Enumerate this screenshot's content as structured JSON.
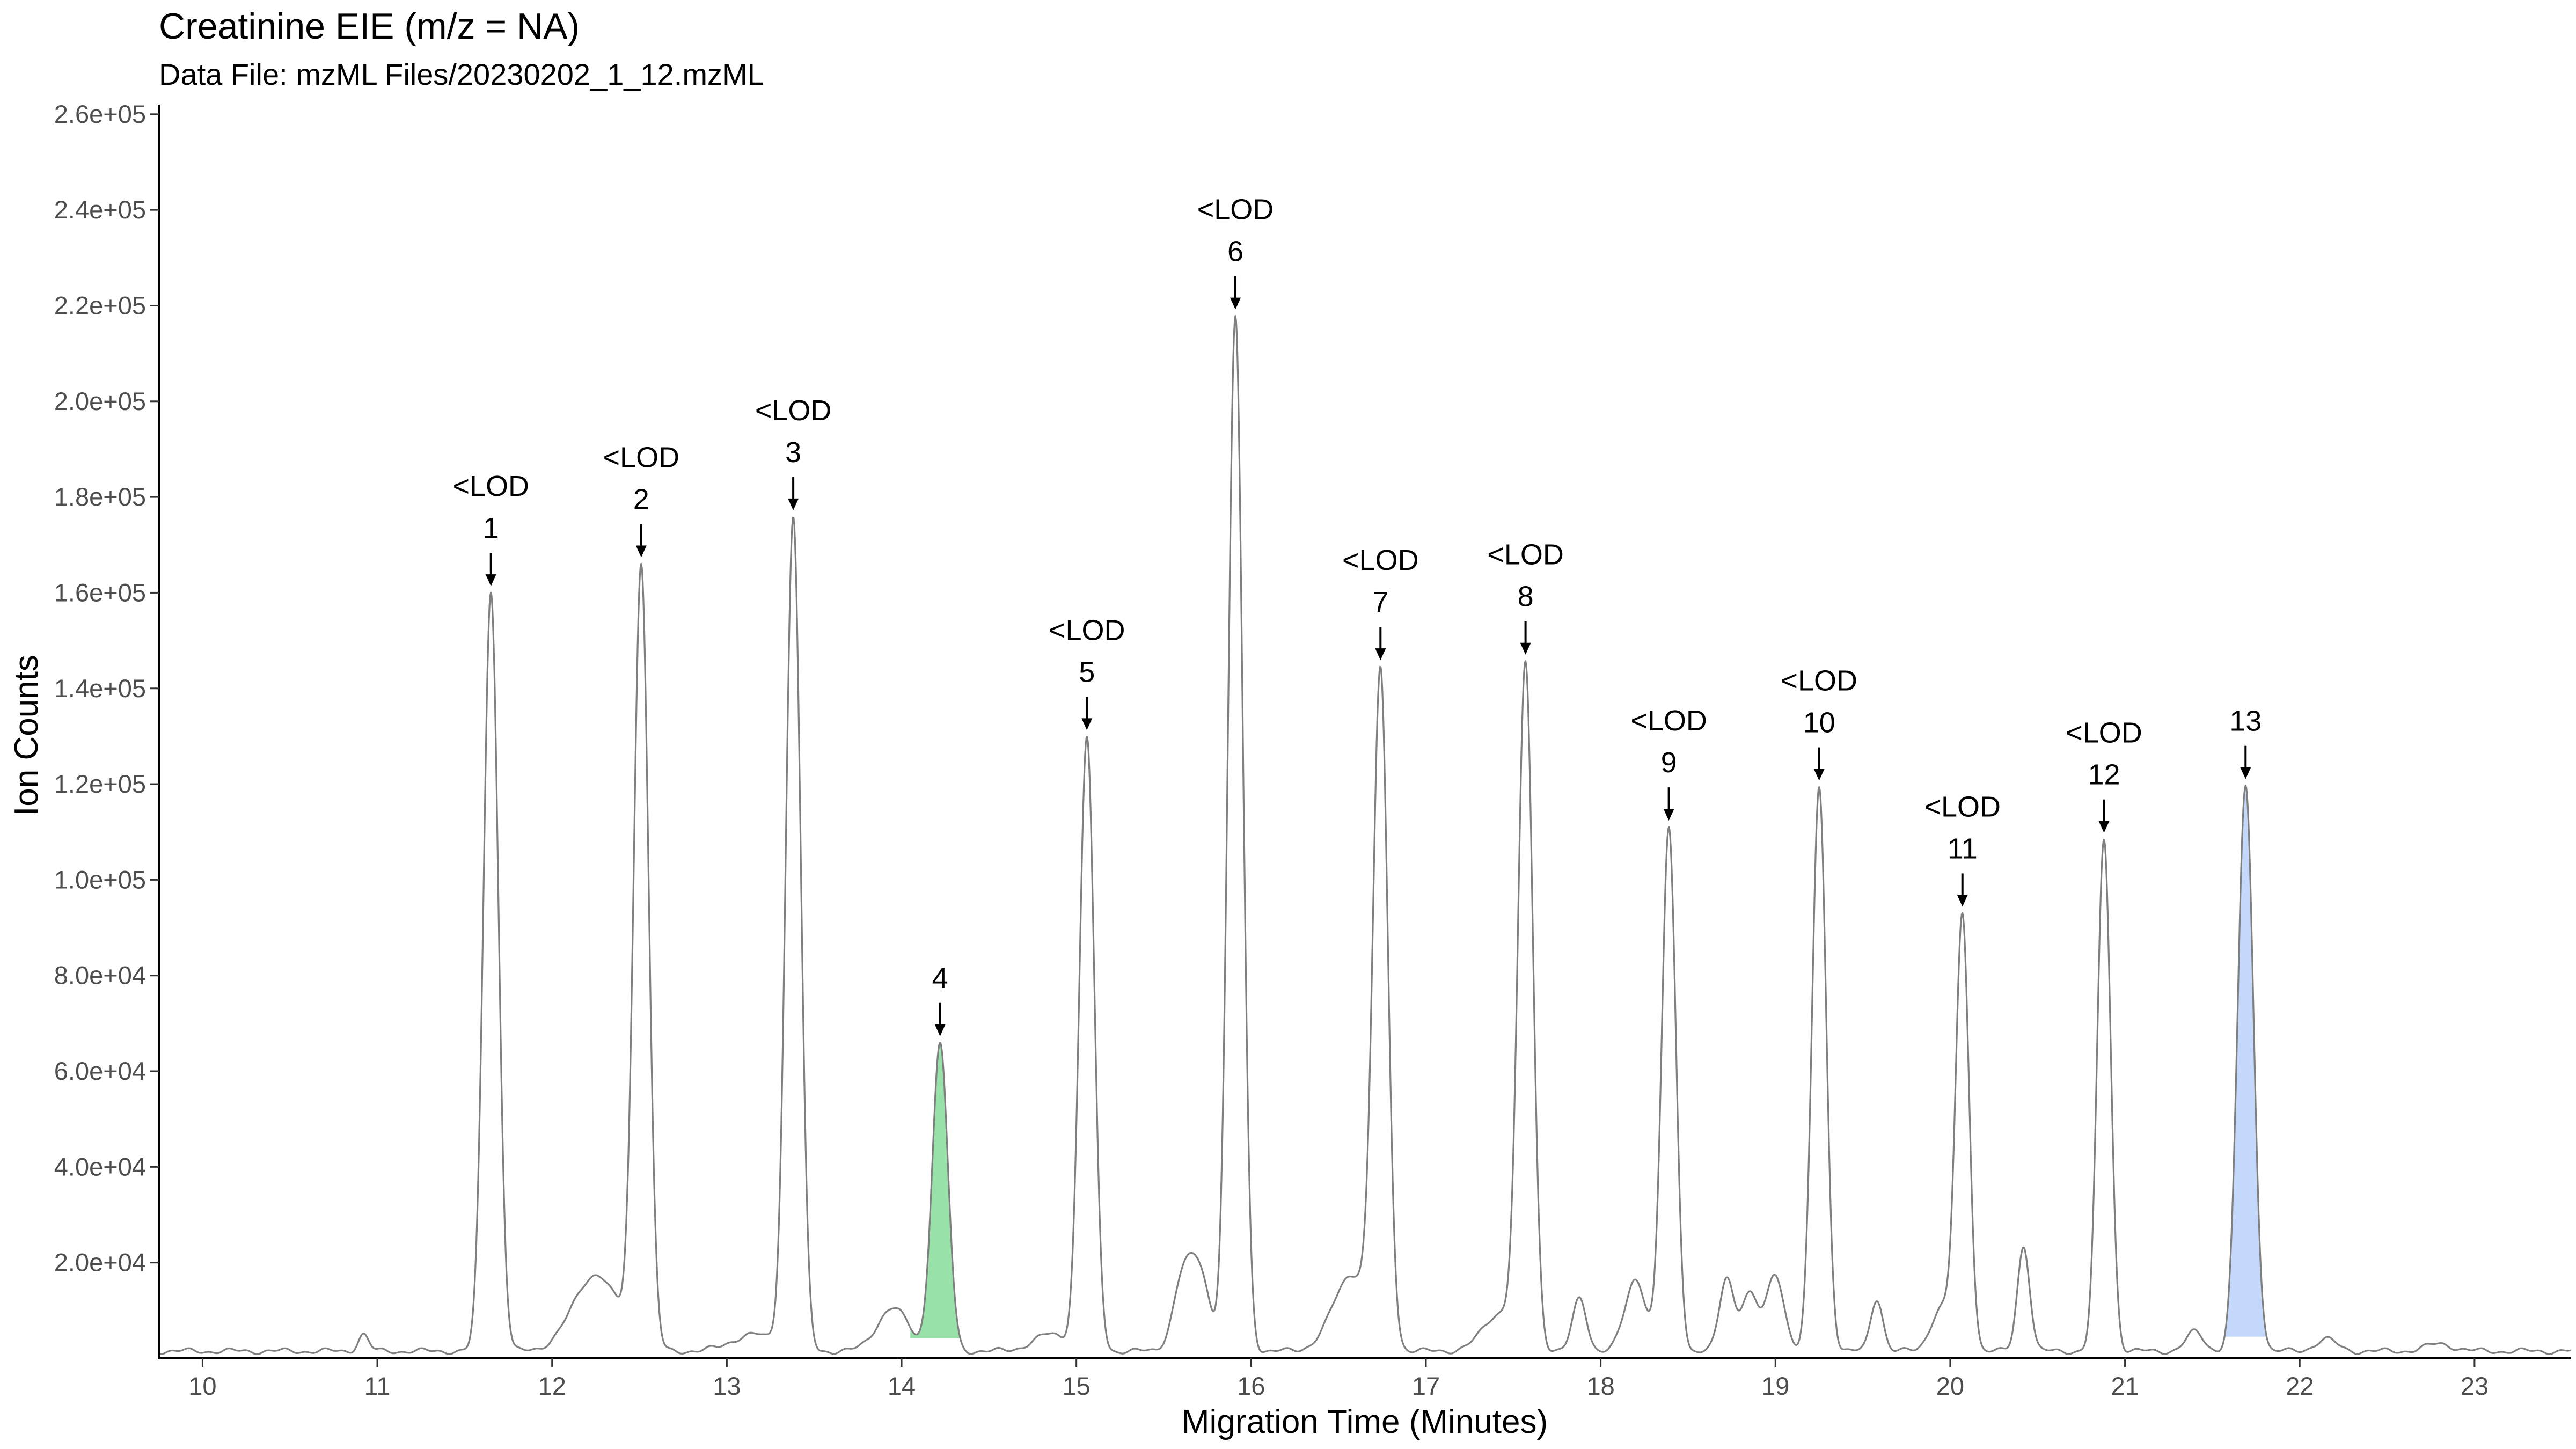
{
  "chart_data": {
    "type": "line",
    "title": "Creatinine EIE (m/z = NA)",
    "subtitle": "Data File:  mzML Files/20230202_1_12.mzML",
    "xlabel": "Migration Time (Minutes)",
    "ylabel": "Ion Counts",
    "xlim": [
      9.75,
      23.55
    ],
    "ylim": [
      0,
      262000
    ],
    "x_ticks": [
      10,
      11,
      12,
      13,
      14,
      15,
      16,
      17,
      18,
      19,
      20,
      21,
      22,
      23
    ],
    "x_tick_labels": [
      "10",
      "11",
      "12",
      "13",
      "14",
      "15",
      "16",
      "17",
      "18",
      "19",
      "20",
      "21",
      "22",
      "23"
    ],
    "y_ticks": [
      20000,
      40000,
      60000,
      80000,
      100000,
      120000,
      140000,
      160000,
      180000,
      200000,
      220000,
      240000,
      260000
    ],
    "y_tick_labels": [
      "2.0e+04",
      "4.0e+04",
      "6.0e+04",
      "8.0e+04",
      "1.0e+05",
      "1.2e+05",
      "1.4e+05",
      "1.6e+05",
      "1.8e+05",
      "2.0e+05",
      "2.2e+05",
      "2.4e+05",
      "2.6e+05"
    ],
    "grid": false,
    "baseline": 1500,
    "line_color": "#7f7f7f",
    "peaks": [
      {
        "label": "1",
        "status": "<LOD",
        "x": 11.65,
        "y": 159000,
        "sigma": 0.042,
        "filled": false,
        "fill_color": ""
      },
      {
        "label": "2",
        "status": "<LOD",
        "x": 12.51,
        "y": 163000,
        "sigma": 0.042,
        "filled": false,
        "fill_color": ""
      },
      {
        "label": "3",
        "status": "<LOD",
        "x": 13.38,
        "y": 174000,
        "sigma": 0.042,
        "filled": false,
        "fill_color": ""
      },
      {
        "label": "4",
        "status": "",
        "x": 14.22,
        "y": 64000,
        "sigma": 0.045,
        "filled": true,
        "fill_color": "#98e2aa",
        "fill_range": [
          14.05,
          14.42
        ]
      },
      {
        "label": "5",
        "status": "<LOD",
        "x": 15.06,
        "y": 128000,
        "sigma": 0.042,
        "filled": false,
        "fill_color": ""
      },
      {
        "label": "6",
        "status": "<LOD",
        "x": 15.91,
        "y": 216000,
        "sigma": 0.042,
        "filled": false,
        "fill_color": ""
      },
      {
        "label": "7",
        "status": "<LOD",
        "x": 16.74,
        "y": 137000,
        "sigma": 0.042,
        "filled": false,
        "fill_color": ""
      },
      {
        "label": "8",
        "status": "<LOD",
        "x": 17.57,
        "y": 141000,
        "sigma": 0.042,
        "filled": false,
        "fill_color": ""
      },
      {
        "label": "9",
        "status": "<LOD",
        "x": 18.39,
        "y": 109000,
        "sigma": 0.04,
        "filled": false,
        "fill_color": ""
      },
      {
        "label": "10",
        "status": "<LOD",
        "x": 19.25,
        "y": 118000,
        "sigma": 0.04,
        "filled": false,
        "fill_color": ""
      },
      {
        "label": "11",
        "status": "<LOD",
        "x": 20.07,
        "y": 90000,
        "sigma": 0.038,
        "filled": false,
        "fill_color": ""
      },
      {
        "label": "12",
        "status": "<LOD",
        "x": 20.88,
        "y": 107000,
        "sigma": 0.038,
        "filled": false,
        "fill_color": ""
      },
      {
        "label": "13",
        "status": "",
        "x": 21.69,
        "y": 118000,
        "sigma": 0.045,
        "filled": true,
        "fill_color": "#c3d8fa",
        "fill_range": [
          21.45,
          21.9
        ]
      }
    ],
    "minor_peaks": [
      {
        "x": 10.92,
        "y": 3500,
        "sigma": 0.03
      },
      {
        "x": 12.25,
        "y": 16000,
        "sigma": 0.13
      },
      {
        "x": 13.15,
        "y": 3500,
        "sigma": 0.12
      },
      {
        "x": 13.95,
        "y": 9000,
        "sigma": 0.09
      },
      {
        "x": 14.85,
        "y": 3500,
        "sigma": 0.1
      },
      {
        "x": 15.62,
        "y": 17000,
        "sigma": 0.06
      },
      {
        "x": 15.72,
        "y": 13000,
        "sigma": 0.05
      },
      {
        "x": 16.58,
        "y": 16000,
        "sigma": 0.11
      },
      {
        "x": 17.43,
        "y": 8000,
        "sigma": 0.1
      },
      {
        "x": 17.88,
        "y": 11000,
        "sigma": 0.04
      },
      {
        "x": 18.2,
        "y": 15000,
        "sigma": 0.06
      },
      {
        "x": 18.72,
        "y": 15000,
        "sigma": 0.04
      },
      {
        "x": 18.85,
        "y": 12000,
        "sigma": 0.05
      },
      {
        "x": 19.0,
        "y": 16000,
        "sigma": 0.05
      },
      {
        "x": 19.58,
        "y": 11000,
        "sigma": 0.035
      },
      {
        "x": 19.95,
        "y": 9000,
        "sigma": 0.06
      },
      {
        "x": 20.42,
        "y": 22000,
        "sigma": 0.035
      },
      {
        "x": 21.4,
        "y": 4000,
        "sigma": 0.05
      },
      {
        "x": 22.15,
        "y": 2500,
        "sigma": 0.06
      },
      {
        "x": 22.8,
        "y": 1500,
        "sigma": 0.08
      }
    ]
  }
}
